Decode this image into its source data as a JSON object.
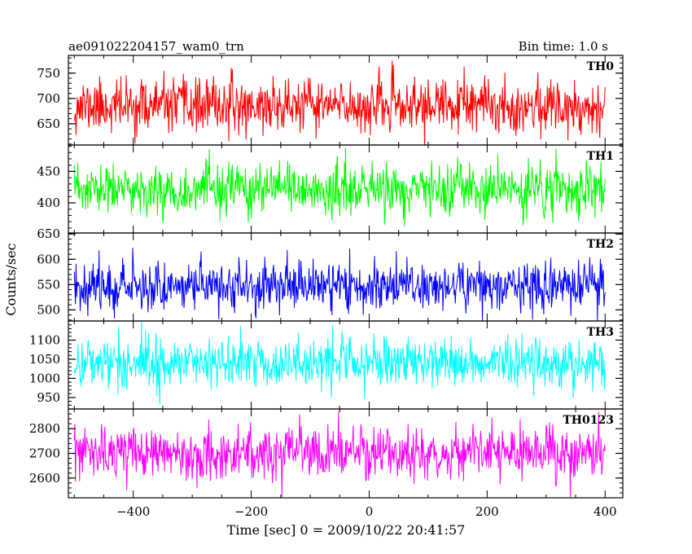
{
  "chart_data": {
    "type": "line",
    "title_left": "ae091022204157_wam0_trn",
    "title_right": "Bin time: 1.0 s",
    "xlabel": "Time [sec] 0 = 2009/10/22 20:41:57",
    "ylabel": "Counts/sec",
    "xlim": [
      -510,
      430
    ],
    "x_ticks": [
      -400,
      -200,
      0,
      200,
      400
    ],
    "x_tick_labels": [
      "−400",
      "−200",
      "0",
      "200",
      "400"
    ],
    "x_range": [
      -500,
      400
    ],
    "bin_time": 1.0,
    "grid": false,
    "panels": [
      {
        "label": "TH0",
        "color": "#ff0000",
        "ylim": [
          608,
          785
        ],
        "y_ticks": [
          650,
          700,
          750
        ],
        "mean": 685,
        "noise_sd": 26,
        "seed": 11
      },
      {
        "label": "TH1",
        "color": "#00ff00",
        "ylim": [
          352,
          492
        ],
        "y_ticks": [
          400,
          450
        ],
        "mean": 420,
        "noise_sd": 20,
        "seed": 23
      },
      {
        "label": "TH2",
        "color": "#0000ff",
        "ylim": [
          478,
          652
        ],
        "y_ticks": [
          500,
          550,
          600,
          650
        ],
        "mean": 548,
        "noise_sd": 24,
        "seed": 37
      },
      {
        "label": "TH3",
        "color": "#00ffff",
        "ylim": [
          920,
          1150
        ],
        "y_ticks": [
          950,
          1000,
          1050,
          1100
        ],
        "mean": 1042,
        "noise_sd": 33,
        "seed": 41
      },
      {
        "label": "TH0123",
        "color": "#ff00ff",
        "ylim": [
          2520,
          2880
        ],
        "y_ticks": [
          2600,
          2700,
          2800
        ],
        "mean": 2700,
        "noise_sd": 52,
        "seed": 53
      }
    ]
  }
}
